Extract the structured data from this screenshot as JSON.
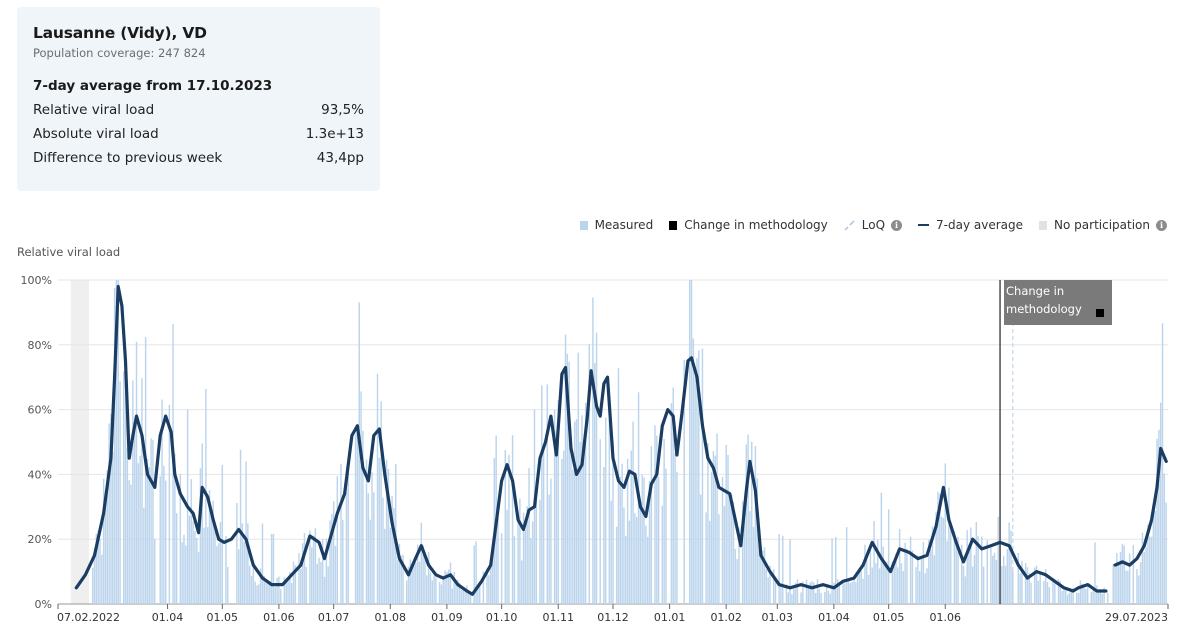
{
  "card": {
    "location": "Lausanne (Vidy), VD",
    "coverage": "Population coverage: 247 824",
    "average_title": "7-day average from 17.10.2023",
    "rows": [
      {
        "label": "Relative viral load",
        "value": "93,5%"
      },
      {
        "label": "Absolute viral load",
        "value": "1.3e+13"
      },
      {
        "label": "Difference to previous week",
        "value": "43,4pp"
      }
    ]
  },
  "legend": {
    "measured": "Measured",
    "change": "Change in methodology",
    "loq": "LoQ",
    "avg": "7-day average",
    "no_participation": "No participation",
    "info_glyph": "i"
  },
  "annotation": "Change in methodology",
  "colors": {
    "measured": "#bcd5ec",
    "avg_line": "#1b3d63",
    "no_participation": "#efefef",
    "annotation_bg": "#7a7a7a"
  },
  "chart_data": {
    "type": "bar",
    "ylabel": "Relative viral load",
    "ylim": [
      0,
      100
    ],
    "yticks": [
      "0%",
      "20%",
      "40%",
      "60%",
      "80%",
      "100%"
    ],
    "x_range": [
      "07.02.2022",
      "29.07.2023"
    ],
    "xticks": [
      "07.02.2022",
      "01.04",
      "01.05",
      "01.06",
      "01.07",
      "01.08",
      "01.09",
      "01.10",
      "01.11",
      "01.12",
      "01.01",
      "01.02",
      "01.03",
      "01.04",
      "01.05",
      "01.06",
      "29.07.2023"
    ],
    "no_participation": [
      "07.02.2022",
      "17.02.2022"
    ],
    "change_in_methodology": "01.07.2023",
    "loq_marker": "08.07.2023",
    "series": [
      {
        "name": "7-day average",
        "style": "line",
        "points": [
          [
            "2022-02-10",
            5
          ],
          [
            "2022-02-15",
            9
          ],
          [
            "2022-02-20",
            15
          ],
          [
            "2022-02-25",
            28
          ],
          [
            "2022-03-01",
            45
          ],
          [
            "2022-03-03",
            70
          ],
          [
            "2022-03-05",
            98
          ],
          [
            "2022-03-07",
            92
          ],
          [
            "2022-03-09",
            75
          ],
          [
            "2022-03-11",
            45
          ],
          [
            "2022-03-13",
            52
          ],
          [
            "2022-03-15",
            58
          ],
          [
            "2022-03-18",
            52
          ],
          [
            "2022-03-21",
            40
          ],
          [
            "2022-03-25",
            36
          ],
          [
            "2022-03-28",
            52
          ],
          [
            "2022-03-31",
            58
          ],
          [
            "2022-04-03",
            53
          ],
          [
            "2022-04-05",
            40
          ],
          [
            "2022-04-08",
            34
          ],
          [
            "2022-04-12",
            30
          ],
          [
            "2022-04-15",
            28
          ],
          [
            "2022-04-18",
            22
          ],
          [
            "2022-04-20",
            36
          ],
          [
            "2022-04-23",
            33
          ],
          [
            "2022-04-26",
            26
          ],
          [
            "2022-04-29",
            20
          ],
          [
            "2022-05-02",
            19
          ],
          [
            "2022-05-06",
            20
          ],
          [
            "2022-05-10",
            23
          ],
          [
            "2022-05-14",
            20
          ],
          [
            "2022-05-18",
            12
          ],
          [
            "2022-05-23",
            8
          ],
          [
            "2022-05-28",
            6
          ],
          [
            "2022-06-03",
            6
          ],
          [
            "2022-06-08",
            9
          ],
          [
            "2022-06-13",
            12
          ],
          [
            "2022-06-18",
            21
          ],
          [
            "2022-06-23",
            19
          ],
          [
            "2022-06-26",
            14
          ],
          [
            "2022-06-29",
            20
          ],
          [
            "2022-07-03",
            28
          ],
          [
            "2022-07-07",
            34
          ],
          [
            "2022-07-11",
            52
          ],
          [
            "2022-07-14",
            55
          ],
          [
            "2022-07-17",
            42
          ],
          [
            "2022-07-20",
            38
          ],
          [
            "2022-07-23",
            52
          ],
          [
            "2022-07-26",
            54
          ],
          [
            "2022-07-29",
            40
          ],
          [
            "2022-08-02",
            25
          ],
          [
            "2022-08-06",
            14
          ],
          [
            "2022-08-11",
            9
          ],
          [
            "2022-08-14",
            13
          ],
          [
            "2022-08-18",
            18
          ],
          [
            "2022-08-22",
            12
          ],
          [
            "2022-08-26",
            9
          ],
          [
            "2022-08-30",
            8
          ],
          [
            "2022-09-03",
            9
          ],
          [
            "2022-09-07",
            6
          ],
          [
            "2022-09-12",
            4
          ],
          [
            "2022-09-15",
            3
          ],
          [
            "2022-09-20",
            7
          ],
          [
            "2022-09-25",
            12
          ],
          [
            "2022-09-28",
            25
          ],
          [
            "2022-10-01",
            38
          ],
          [
            "2022-10-04",
            43
          ],
          [
            "2022-10-07",
            38
          ],
          [
            "2022-10-10",
            26
          ],
          [
            "2022-10-13",
            23
          ],
          [
            "2022-10-16",
            29
          ],
          [
            "2022-10-19",
            30
          ],
          [
            "2022-10-22",
            45
          ],
          [
            "2022-10-25",
            50
          ],
          [
            "2022-10-28",
            58
          ],
          [
            "2022-10-31",
            46
          ],
          [
            "2022-11-03",
            71
          ],
          [
            "2022-11-05",
            73
          ],
          [
            "2022-11-08",
            48
          ],
          [
            "2022-11-11",
            40
          ],
          [
            "2022-11-14",
            43
          ],
          [
            "2022-11-17",
            58
          ],
          [
            "2022-11-19",
            72
          ],
          [
            "2022-11-22",
            61
          ],
          [
            "2022-11-24",
            58
          ],
          [
            "2022-11-26",
            68
          ],
          [
            "2022-11-28",
            70
          ],
          [
            "2022-12-01",
            45
          ],
          [
            "2022-12-04",
            38
          ],
          [
            "2022-12-07",
            36
          ],
          [
            "2022-12-10",
            41
          ],
          [
            "2022-12-13",
            40
          ],
          [
            "2022-12-16",
            30
          ],
          [
            "2022-12-19",
            27
          ],
          [
            "2022-12-22",
            37
          ],
          [
            "2022-12-25",
            40
          ],
          [
            "2022-12-28",
            55
          ],
          [
            "2022-12-31",
            60
          ],
          [
            "2023-01-03",
            58
          ],
          [
            "2023-01-05",
            46
          ],
          [
            "2023-01-08",
            60
          ],
          [
            "2023-01-11",
            75
          ],
          [
            "2023-01-13",
            76
          ],
          [
            "2023-01-16",
            70
          ],
          [
            "2023-01-19",
            55
          ],
          [
            "2023-01-22",
            45
          ],
          [
            "2023-01-25",
            42
          ],
          [
            "2023-01-28",
            36
          ],
          [
            "2023-01-31",
            35
          ],
          [
            "2023-02-03",
            34
          ],
          [
            "2023-02-06",
            26
          ],
          [
            "2023-02-09",
            18
          ],
          [
            "2023-02-12",
            35
          ],
          [
            "2023-02-14",
            44
          ],
          [
            "2023-02-17",
            35
          ],
          [
            "2023-02-20",
            15
          ],
          [
            "2023-02-25",
            10
          ],
          [
            "2023-03-02",
            6
          ],
          [
            "2023-03-08",
            5
          ],
          [
            "2023-03-14",
            6
          ],
          [
            "2023-03-20",
            5
          ],
          [
            "2023-03-26",
            6
          ],
          [
            "2023-04-01",
            5
          ],
          [
            "2023-04-06",
            7
          ],
          [
            "2023-04-12",
            8
          ],
          [
            "2023-04-17",
            12
          ],
          [
            "2023-04-22",
            19
          ],
          [
            "2023-04-27",
            14
          ],
          [
            "2023-05-02",
            10
          ],
          [
            "2023-05-07",
            17
          ],
          [
            "2023-05-12",
            16
          ],
          [
            "2023-05-17",
            14
          ],
          [
            "2023-05-22",
            15
          ],
          [
            "2023-05-27",
            24
          ],
          [
            "2023-05-31",
            36
          ],
          [
            "2023-06-03",
            26
          ],
          [
            "2023-06-07",
            19
          ],
          [
            "2023-06-11",
            13
          ],
          [
            "2023-06-16",
            20
          ],
          [
            "2023-06-21",
            17
          ],
          [
            "2023-06-26",
            18
          ],
          [
            "2023-07-01",
            19
          ],
          [
            "2023-07-06",
            18
          ],
          [
            "2023-07-11",
            12
          ],
          [
            "2023-07-16",
            8
          ],
          [
            "2023-07-21",
            10
          ],
          [
            "2023-07-26",
            9
          ],
          [
            "2023-07-31",
            7
          ],
          [
            "2023-08-05",
            5
          ],
          [
            "2023-08-10",
            4
          ],
          [
            "2023-08-13",
            5
          ],
          [
            "2023-08-18",
            6
          ],
          [
            "2023-08-23",
            4
          ],
          [
            "2023-08-28",
            4
          ],
          null,
          [
            "2023-09-02",
            12
          ],
          [
            "2023-09-06",
            13
          ],
          [
            "2023-09-10",
            12
          ],
          [
            "2023-09-14",
            14
          ],
          [
            "2023-09-18",
            18
          ],
          [
            "2023-09-22",
            26
          ],
          [
            "2023-09-25",
            36
          ],
          [
            "2023-09-27",
            48
          ],
          [
            "2023-09-30",
            44
          ]
        ]
      }
    ]
  }
}
